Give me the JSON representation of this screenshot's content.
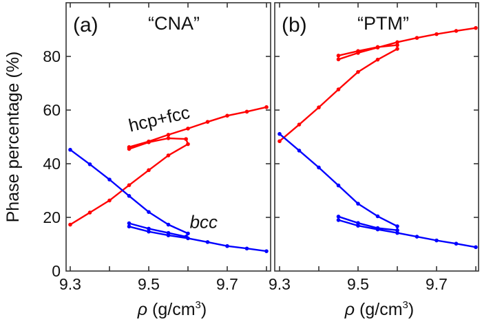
{
  "chart_data": {
    "type": "line",
    "ylabel": "Phase percentage (%)",
    "xlabel_symbol": "ρ",
    "xlabel_unit": " (g/cm",
    "xlabel_sup": "3",
    "xlabel_close": ")",
    "ylim": [
      0,
      97
    ],
    "xlim": [
      9.29,
      9.81
    ],
    "yticks": [
      0,
      20,
      40,
      60,
      80
    ],
    "xticks_major": [
      9.3,
      9.5,
      9.7
    ],
    "xtick_labels": [
      "9.3",
      "9.5",
      "9.7"
    ],
    "xticks_minor": [
      9.4,
      9.6,
      9.8
    ],
    "grid": false,
    "colors": {
      "hcp_fcc": "#ff0000",
      "bcc": "#0000ff"
    },
    "panels": [
      {
        "id": "a",
        "panel_label": "(a)",
        "method_label": "“CNA”",
        "annotations": [
          {
            "text": "hcp+fcc",
            "x": 9.53,
            "y": 54.5,
            "rotate": -13,
            "italic": false
          },
          {
            "text": "bcc",
            "x": 9.64,
            "y": 16,
            "rotate": 0,
            "italic": true
          }
        ],
        "series": [
          {
            "name": "hcp+fcc",
            "color_key": "hcp_fcc",
            "x": [
              9.3,
              9.35,
              9.4,
              9.45,
              9.5,
              9.55,
              9.6,
              9.595,
              9.55,
              9.5,
              9.45,
              9.45,
              9.5,
              9.55,
              9.6,
              9.65,
              9.7,
              9.75,
              9.8
            ],
            "y": [
              17.3,
              21.8,
              26.3,
              32.0,
              37.6,
              43.1,
              47.3,
              49.2,
              49.5,
              48.0,
              45.5,
              46.2,
              48.3,
              50.8,
              53.1,
              55.6,
              57.9,
              59.4,
              61.1
            ]
          },
          {
            "name": "bcc",
            "color_key": "bcc",
            "x": [
              9.3,
              9.35,
              9.4,
              9.45,
              9.5,
              9.55,
              9.6,
              9.595,
              9.55,
              9.5,
              9.45,
              9.45,
              9.5,
              9.55,
              9.6,
              9.65,
              9.7,
              9.75,
              9.8
            ],
            "y": [
              45.2,
              39.8,
              34.1,
              28.0,
              22.0,
              17.3,
              14.0,
              12.8,
              14.2,
              15.8,
              17.8,
              16.6,
              14.7,
              13.3,
              12.2,
              10.8,
              9.3,
              8.4,
              7.4
            ]
          }
        ]
      },
      {
        "id": "b",
        "panel_label": "(b)",
        "method_label": "“PTM”",
        "annotations": [],
        "series": [
          {
            "name": "hcp+fcc",
            "color_key": "hcp_fcc",
            "x": [
              9.3,
              9.35,
              9.4,
              9.45,
              9.5,
              9.55,
              9.6,
              9.6,
              9.55,
              9.5,
              9.45,
              9.45,
              9.5,
              9.55,
              9.6,
              9.65,
              9.7,
              9.75,
              9.8
            ],
            "y": [
              48.4,
              54.6,
              61.0,
              67.7,
              74.2,
              78.8,
              82.8,
              84.2,
              83.5,
              82.0,
              80.3,
              78.9,
              81.3,
              83.3,
              85.3,
              86.9,
              88.3,
              89.5,
              90.6
            ]
          },
          {
            "name": "bcc",
            "color_key": "bcc",
            "x": [
              9.3,
              9.35,
              9.4,
              9.45,
              9.5,
              9.55,
              9.6,
              9.6,
              9.55,
              9.5,
              9.45,
              9.45,
              9.5,
              9.55,
              9.6,
              9.65,
              9.7,
              9.75,
              9.8
            ],
            "y": [
              51.1,
              44.9,
              38.6,
              31.9,
              25.1,
              20.4,
              16.7,
              15.2,
              16.0,
              17.9,
              20.3,
              19.0,
              16.9,
              15.5,
              14.2,
              12.8,
              11.4,
              10.2,
              8.9
            ]
          }
        ]
      }
    ]
  }
}
